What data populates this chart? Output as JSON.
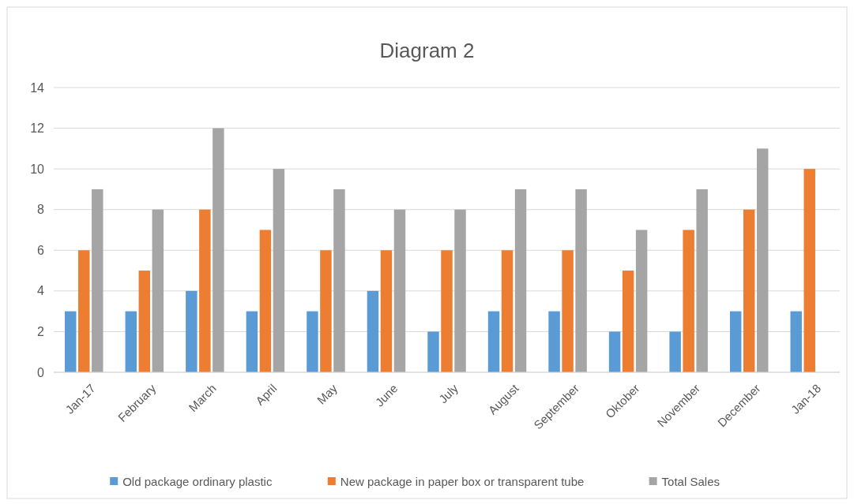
{
  "chart_data": {
    "type": "bar",
    "title": "Diagram 2",
    "categories": [
      "Jan-17",
      "February",
      "March",
      "April",
      "May",
      "June",
      "July",
      "August",
      "September",
      "Oktober",
      "November",
      "December",
      "Jan-18"
    ],
    "series": [
      {
        "name": "Old package ordinary plastic",
        "color": "#5b9bd5",
        "values": [
          3,
          3,
          4,
          3,
          3,
          4,
          2,
          3,
          3,
          2,
          2,
          3,
          3
        ]
      },
      {
        "name": "New package in paper box or transparent tube",
        "color": "#ed7d31",
        "values": [
          6,
          5,
          8,
          7,
          6,
          6,
          6,
          6,
          6,
          5,
          7,
          8,
          10
        ]
      },
      {
        "name": "Total Sales",
        "color": "#a5a5a5",
        "values": [
          9,
          8,
          12,
          10,
          9,
          8,
          8,
          9,
          9,
          7,
          9,
          11,
          null
        ]
      }
    ],
    "ylim": [
      0,
      14
    ],
    "yticks": [
      0,
      2,
      4,
      6,
      8,
      10,
      12,
      14
    ],
    "grid": "y",
    "legend": "bottom"
  }
}
